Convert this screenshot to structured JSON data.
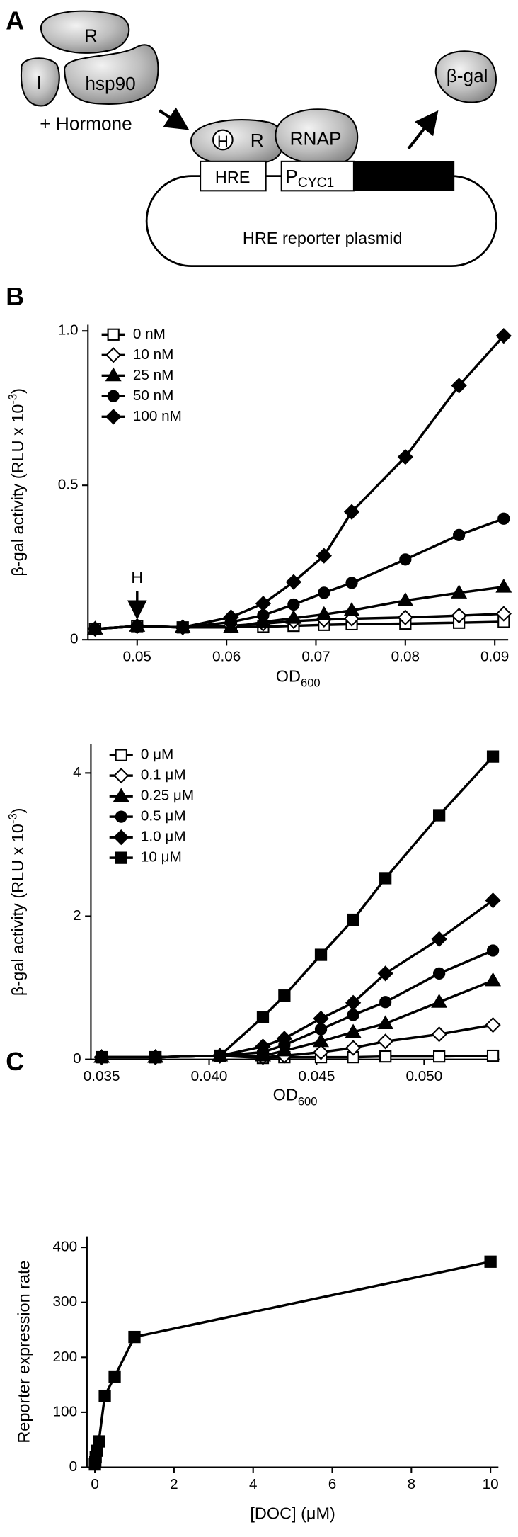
{
  "diagram": {
    "panel_label": "A",
    "complex": {
      "receptor": "R",
      "inhibitor": "I",
      "chaperone": "hsp90"
    },
    "condition": "+ Hormone",
    "bound": {
      "hormone": "H",
      "receptor": "R",
      "polymerase": "RNAP"
    },
    "promoter": {
      "element": "HRE",
      "name": "P",
      "name_sub": "CYC1"
    },
    "product": "β-gal",
    "plasmid": "HRE reporter plasmid"
  },
  "chart_data": [
    {
      "type": "line",
      "panel_label": "B",
      "ylabel": "β-gal activity (RLU x 10",
      "ylabel_sup": "-3",
      "ylabel_end": ")",
      "xlabel": "OD",
      "xlabel_sub": "600",
      "x": [
        0.0453,
        0.05,
        0.0551,
        0.0605,
        0.0641,
        0.0675,
        0.0709,
        0.074,
        0.08,
        0.086,
        0.091
      ],
      "series": [
        {
          "name": "0 nM",
          "marker": "square-open",
          "color": "#000",
          "values": [
            0.035,
            0.044,
            0.04,
            0.042,
            0.042,
            0.045,
            0.048,
            0.05,
            0.052,
            0.055,
            0.058
          ]
        },
        {
          "name": "10 nM",
          "marker": "diamond-open",
          "color": "#000",
          "values": [
            0.035,
            0.044,
            0.04,
            0.045,
            0.052,
            0.06,
            0.065,
            0.068,
            0.072,
            0.078,
            0.084
          ]
        },
        {
          "name": "25 nM",
          "marker": "triangle",
          "color": "#000",
          "values": [
            0.035,
            0.044,
            0.04,
            0.04,
            0.057,
            0.07,
            0.082,
            0.095,
            0.127,
            0.152,
            0.171
          ]
        },
        {
          "name": "50 nM",
          "marker": "circle",
          "color": "#000",
          "values": [
            0.035,
            0.044,
            0.04,
            0.057,
            0.079,
            0.114,
            0.152,
            0.184,
            0.26,
            0.339,
            0.392
          ]
        },
        {
          "name": "100 nM",
          "marker": "diamond",
          "color": "#000",
          "values": [
            0.035,
            0.044,
            0.04,
            0.073,
            0.117,
            0.187,
            0.272,
            0.414,
            0.592,
            0.823,
            0.984
          ]
        }
      ],
      "annotation": {
        "text": "H",
        "x": 0.05
      },
      "xlim": [
        0.0445,
        0.0915
      ],
      "xticks": [
        0.05,
        0.06,
        0.07,
        0.08,
        0.09
      ],
      "ylim": [
        0,
        1.02
      ],
      "yticks": [
        0,
        0.5,
        {
          "value": 1.0,
          "label": "1.0"
        }
      ],
      "legend": "upper-left"
    },
    {
      "type": "line",
      "ylabel": "β-gal activity (RLU x 10",
      "ylabel_sup": "-3",
      "ylabel_end": ")",
      "xlabel": "OD",
      "xlabel_sub": "600",
      "x": [
        0.035,
        0.0375,
        0.0405,
        0.0425,
        0.0435,
        0.0452,
        0.0467,
        0.0482,
        0.0507,
        0.0532
      ],
      "series": [
        {
          "name": "0 μM",
          "marker": "square-open",
          "color": "#000",
          "values": [
            0.03,
            0.03,
            0.05,
            0.02,
            0.03,
            0.03,
            0.03,
            0.04,
            0.04,
            0.05
          ]
        },
        {
          "name": "0.1 μM",
          "marker": "diamond-open",
          "color": "#000",
          "values": [
            0.03,
            0.03,
            0.05,
            0.03,
            0.05,
            0.1,
            0.16,
            0.25,
            0.35,
            0.48
          ]
        },
        {
          "name": "0.25 μM",
          "marker": "triangle",
          "color": "#000",
          "values": [
            0.03,
            0.03,
            0.05,
            0.05,
            0.12,
            0.25,
            0.38,
            0.5,
            0.8,
            1.1
          ]
        },
        {
          "name": "0.5 μM",
          "marker": "circle",
          "color": "#000",
          "values": [
            0.03,
            0.03,
            0.05,
            0.1,
            0.2,
            0.42,
            0.62,
            0.8,
            1.2,
            1.52
          ]
        },
        {
          "name": "1.0 μM",
          "marker": "diamond",
          "color": "#000",
          "values": [
            0.03,
            0.03,
            0.05,
            0.18,
            0.29,
            0.57,
            0.79,
            1.2,
            1.68,
            2.22
          ]
        },
        {
          "name": "10 μM",
          "marker": "square",
          "color": "#000",
          "values": [
            0.03,
            0.03,
            0.05,
            0.59,
            0.89,
            1.46,
            1.95,
            2.53,
            3.41,
            4.23
          ]
        }
      ],
      "xlim": [
        0.0345,
        0.0535
      ],
      "xticks": [
        0.035,
        {
          "value": 0.04,
          "label": "0.040"
        },
        0.045,
        {
          "value": 0.05,
          "label": "0.050"
        }
      ],
      "ylim": [
        0,
        4.4
      ],
      "yticks": [
        0,
        2,
        4
      ],
      "legend": "upper-left"
    },
    {
      "type": "line",
      "panel_label": "C",
      "ylabel": "Reporter expression rate",
      "xlabel": "[DOC] (μM)",
      "x": [
        0,
        0.01,
        0.02,
        0.05,
        0.1,
        0.25,
        0.5,
        1,
        10
      ],
      "values": [
        5,
        10,
        18,
        30,
        47,
        130,
        165,
        237,
        374
      ],
      "marker": "square",
      "color": "#000",
      "xlim": [
        -0.2,
        10.2
      ],
      "xticks": [
        0,
        2,
        4,
        6,
        8,
        10
      ],
      "ylim": [
        0,
        420
      ],
      "yticks": [
        0,
        100,
        200,
        300,
        400
      ]
    }
  ]
}
